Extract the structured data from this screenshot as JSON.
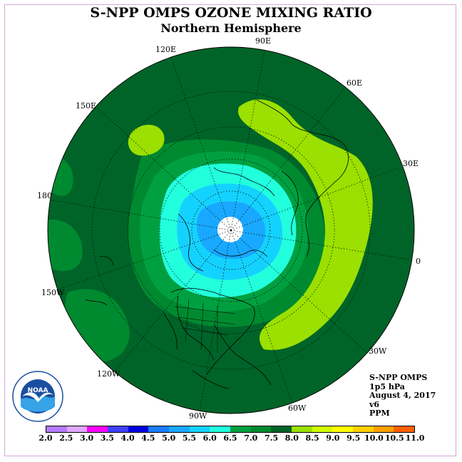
{
  "title": "S-NPP OMPS OZONE MIXING RATIO",
  "subtitle": "Northern Hemisphere",
  "longitude_labels": [
    "90E",
    "60E",
    "30E",
    "0",
    "30W",
    "60W",
    "90W",
    "120W",
    "150W",
    "180",
    "150E",
    "120E"
  ],
  "info": {
    "instrument": "S-NPP OMPS",
    "level": "1p5 hPa",
    "date": "August 4, 2017",
    "version": "v6",
    "units": "PPM"
  },
  "colorbar": {
    "tick_labels": [
      "2.0",
      "2.5",
      "3.0",
      "3.5",
      "4.0",
      "4.5",
      "5.0",
      "5.5",
      "6.0",
      "6.5",
      "7.0",
      "7.5",
      "8.0",
      "8.5",
      "9.0",
      "9.5",
      "10.0",
      "10.5",
      "11.0"
    ],
    "colors": [
      "#b57aff",
      "#e0a8ff",
      "#ff00ff",
      "#4040ff",
      "#0000e0",
      "#1a7cff",
      "#19a8ff",
      "#14d2ff",
      "#22ffdd",
      "#00a040",
      "#008a30",
      "#006428",
      "#9be000",
      "#d0ff00",
      "#ffff00",
      "#ffd000",
      "#ffa000",
      "#ff6000",
      "#ff0000",
      "#8a5a2a"
    ]
  },
  "logo_text": "NOAA"
}
